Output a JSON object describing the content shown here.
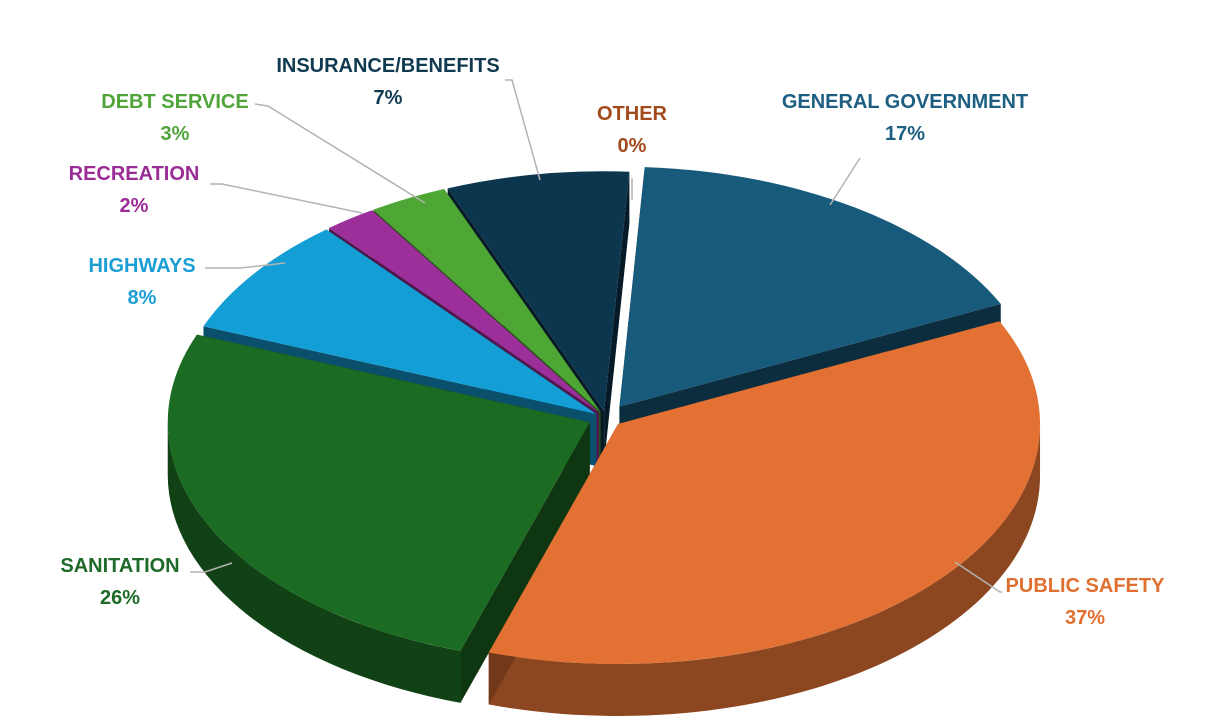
{
  "chart_data": {
    "type": "pie",
    "title": "",
    "slices": [
      {
        "name": "GENERAL GOVERNMENT",
        "value": 17,
        "label": "17%",
        "color": "#175a7c",
        "label_color": "#1d5f82"
      },
      {
        "name": "PUBLIC SAFETY",
        "value": 37,
        "label": "37%",
        "color": "#e27133",
        "label_color": "#e07030"
      },
      {
        "name": "SANITATION",
        "value": 26,
        "label": "26%",
        "color": "#1c6b22",
        "label_color": "#1e6a28"
      },
      {
        "name": "HIGHWAYS",
        "value": 8,
        "label": "8%",
        "color": "#149ed6",
        "label_color": "#1a9ed4"
      },
      {
        "name": "RECREATION",
        "value": 2,
        "label": "2%",
        "color": "#9c2f9a",
        "label_color": "#9b2c97"
      },
      {
        "name": "DEBT SERVICE",
        "value": 3,
        "label": "3%",
        "color": "#4ea634",
        "label_color": "#4fa53a"
      },
      {
        "name": "INSURANCE/BENEFITS",
        "value": 7,
        "label": "7%",
        "color": "#0c364d",
        "label_color": "#0f3a50"
      },
      {
        "name": "OTHER",
        "value": 0,
        "label": "0%",
        "color": "#a5461c",
        "label_color": "#a24a1c"
      }
    ],
    "legend": "none",
    "style": "3d-exploded"
  }
}
